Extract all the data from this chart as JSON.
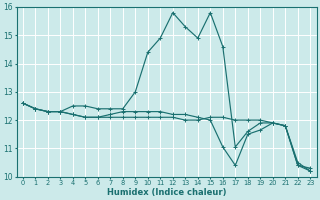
{
  "xlabel": "Humidex (Indice chaleur)",
  "bg_color": "#cceaea",
  "grid_color": "#ffffff",
  "line_color": "#1a7070",
  "xlim": [
    -0.5,
    23.5
  ],
  "ylim": [
    10.0,
    16.0
  ],
  "yticks": [
    10,
    11,
    12,
    13,
    14,
    15,
    16
  ],
  "xtick_labels": [
    "0",
    "1",
    "2",
    "3",
    "4",
    "5",
    "6",
    "7",
    "8",
    "9",
    "10",
    "11",
    "12",
    "13",
    "14",
    "15",
    "16",
    "17",
    "18",
    "19",
    "20",
    "21",
    "22",
    "23"
  ],
  "series": [
    [
      12.6,
      12.4,
      12.3,
      12.3,
      12.5,
      12.5,
      12.4,
      12.4,
      12.4,
      13.0,
      14.4,
      14.9,
      15.8,
      15.3,
      14.9,
      15.8,
      14.6,
      11.05,
      11.6,
      11.9,
      11.9,
      11.8,
      10.4,
      10.3
    ],
    [
      12.6,
      12.4,
      12.3,
      12.3,
      12.2,
      12.1,
      12.1,
      12.1,
      12.1,
      12.1,
      12.1,
      12.1,
      12.1,
      12.0,
      12.0,
      12.1,
      12.1,
      12.0,
      12.0,
      12.0,
      11.9,
      11.8,
      10.5,
      10.2
    ],
    [
      12.6,
      12.4,
      12.3,
      12.3,
      12.2,
      12.1,
      12.1,
      12.2,
      12.3,
      12.3,
      12.3,
      12.3,
      12.2,
      12.2,
      12.1,
      12.0,
      11.05,
      10.4,
      11.5,
      11.65,
      11.9,
      11.8,
      10.4,
      10.2
    ]
  ]
}
